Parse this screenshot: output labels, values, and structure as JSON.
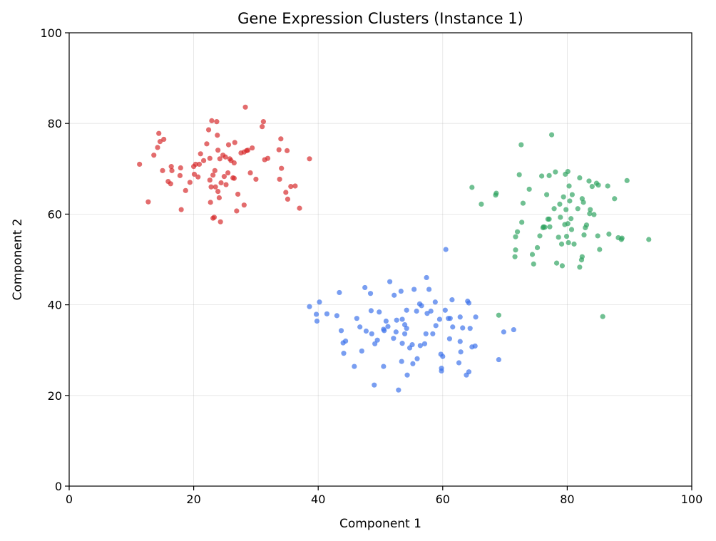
{
  "chart_data": {
    "type": "scatter",
    "title": "Gene Expression Clusters (Instance 1)",
    "xlabel": "Component 1",
    "ylabel": "Component 2",
    "xlim": [
      0,
      100
    ],
    "ylim": [
      0,
      100
    ],
    "xticks": [
      0,
      20,
      40,
      60,
      80,
      100
    ],
    "yticks": [
      0,
      20,
      40,
      60,
      80,
      100
    ],
    "grid": true,
    "series": [
      {
        "color": "#d62728",
        "points": [
          [
            11.3,
            71.0
          ],
          [
            12.7,
            62.7
          ],
          [
            13.6,
            73.0
          ],
          [
            14.2,
            74.7
          ],
          [
            14.4,
            77.8
          ],
          [
            14.6,
            76.0
          ],
          [
            15.0,
            69.6
          ],
          [
            15.2,
            76.5
          ],
          [
            15.9,
            67.2
          ],
          [
            16.3,
            66.7
          ],
          [
            16.4,
            70.5
          ],
          [
            16.5,
            69.6
          ],
          [
            17.8,
            68.5
          ],
          [
            17.9,
            70.2
          ],
          [
            18.0,
            61.0
          ],
          [
            18.7,
            65.2
          ],
          [
            19.4,
            67.0
          ],
          [
            20.0,
            70.5
          ],
          [
            20.1,
            68.8
          ],
          [
            20.3,
            71.0
          ],
          [
            20.7,
            68.2
          ],
          [
            20.9,
            71.0
          ],
          [
            21.1,
            73.3
          ],
          [
            21.6,
            71.8
          ],
          [
            22.1,
            75.5
          ],
          [
            22.4,
            78.6
          ],
          [
            22.6,
            67.5
          ],
          [
            22.6,
            72.3
          ],
          [
            22.7,
            62.6
          ],
          [
            22.8,
            66.0
          ],
          [
            22.9,
            80.6
          ],
          [
            23.1,
            68.6
          ],
          [
            23.1,
            59.1
          ],
          [
            23.3,
            59.3
          ],
          [
            23.4,
            69.6
          ],
          [
            23.5,
            66.0
          ],
          [
            23.7,
            80.4
          ],
          [
            23.8,
            77.4
          ],
          [
            23.9,
            74.1
          ],
          [
            23.9,
            65.0
          ],
          [
            24.1,
            63.6
          ],
          [
            24.2,
            72.2
          ],
          [
            24.3,
            58.3
          ],
          [
            24.4,
            66.9
          ],
          [
            24.7,
            73.0
          ],
          [
            24.9,
            68.3
          ],
          [
            25.1,
            72.6
          ],
          [
            25.2,
            66.5
          ],
          [
            25.5,
            69.1
          ],
          [
            25.6,
            75.3
          ],
          [
            25.8,
            72.2
          ],
          [
            26.0,
            71.8
          ],
          [
            26.3,
            68.0
          ],
          [
            26.5,
            67.9
          ],
          [
            26.5,
            71.3
          ],
          [
            26.6,
            75.8
          ],
          [
            26.9,
            60.7
          ],
          [
            27.1,
            64.4
          ],
          [
            27.6,
            73.5
          ],
          [
            28.1,
            62.0
          ],
          [
            28.1,
            73.7
          ],
          [
            28.3,
            83.6
          ],
          [
            28.5,
            74.0
          ],
          [
            28.7,
            74.1
          ],
          [
            29.1,
            69.1
          ],
          [
            29.4,
            74.6
          ],
          [
            30.0,
            67.7
          ],
          [
            31.0,
            79.3
          ],
          [
            31.2,
            80.4
          ],
          [
            31.4,
            72.0
          ],
          [
            31.9,
            72.3
          ],
          [
            33.7,
            74.2
          ],
          [
            33.8,
            67.7
          ],
          [
            34.0,
            76.6
          ],
          [
            34.1,
            70.1
          ],
          [
            34.8,
            64.8
          ],
          [
            35.0,
            74.0
          ],
          [
            35.1,
            63.3
          ],
          [
            35.6,
            66.1
          ],
          [
            36.3,
            66.2
          ],
          [
            37.0,
            61.3
          ],
          [
            38.6,
            72.2
          ]
        ]
      },
      {
        "color": "#3a70ea",
        "points": [
          [
            38.6,
            39.6
          ],
          [
            39.7,
            37.9
          ],
          [
            39.8,
            36.4
          ],
          [
            40.2,
            40.6
          ],
          [
            41.4,
            38.0
          ],
          [
            43.0,
            37.6
          ],
          [
            43.4,
            42.7
          ],
          [
            43.7,
            34.3
          ],
          [
            44.0,
            31.6
          ],
          [
            44.1,
            29.3
          ],
          [
            44.4,
            32.0
          ],
          [
            45.8,
            26.4
          ],
          [
            46.2,
            37.0
          ],
          [
            46.7,
            35.1
          ],
          [
            47.0,
            29.8
          ],
          [
            47.5,
            43.8
          ],
          [
            47.7,
            34.2
          ],
          [
            48.4,
            42.5
          ],
          [
            48.5,
            38.7
          ],
          [
            48.6,
            33.6
          ],
          [
            49.0,
            22.3
          ],
          [
            49.1,
            31.4
          ],
          [
            49.5,
            32.2
          ],
          [
            49.8,
            38.4
          ],
          [
            50.5,
            26.4
          ],
          [
            50.5,
            34.6
          ],
          [
            50.6,
            34.3
          ],
          [
            50.9,
            36.4
          ],
          [
            51.2,
            35.2
          ],
          [
            51.5,
            45.1
          ],
          [
            52.1,
            32.6
          ],
          [
            52.2,
            42.1
          ],
          [
            52.5,
            34.0
          ],
          [
            52.6,
            36.6
          ],
          [
            52.9,
            21.2
          ],
          [
            53.3,
            43.0
          ],
          [
            53.4,
            27.5
          ],
          [
            53.5,
            36.8
          ],
          [
            53.5,
            31.5
          ],
          [
            53.9,
            35.6
          ],
          [
            53.9,
            33.6
          ],
          [
            54.2,
            38.8
          ],
          [
            54.2,
            34.8
          ],
          [
            54.3,
            24.5
          ],
          [
            54.7,
            30.5
          ],
          [
            55.1,
            31.2
          ],
          [
            55.2,
            27.0
          ],
          [
            55.4,
            43.4
          ],
          [
            55.8,
            38.6
          ],
          [
            55.9,
            28.1
          ],
          [
            56.3,
            40.2
          ],
          [
            56.4,
            31.0
          ],
          [
            56.6,
            39.8
          ],
          [
            57.1,
            31.4
          ],
          [
            57.3,
            33.6
          ],
          [
            57.4,
            46.0
          ],
          [
            57.5,
            38.1
          ],
          [
            57.8,
            43.4
          ],
          [
            58.1,
            38.6
          ],
          [
            58.4,
            33.6
          ],
          [
            58.8,
            40.6
          ],
          [
            58.9,
            35.4
          ],
          [
            59.5,
            36.8
          ],
          [
            59.7,
            29.1
          ],
          [
            59.8,
            26.0
          ],
          [
            59.8,
            25.4
          ],
          [
            60.0,
            28.6
          ],
          [
            60.4,
            38.8
          ],
          [
            60.5,
            52.2
          ],
          [
            60.9,
            37.0
          ],
          [
            61.1,
            32.5
          ],
          [
            61.2,
            37.0
          ],
          [
            61.5,
            41.1
          ],
          [
            61.6,
            35.1
          ],
          [
            62.6,
            27.2
          ],
          [
            62.8,
            37.3
          ],
          [
            62.8,
            31.9
          ],
          [
            62.9,
            29.6
          ],
          [
            63.2,
            34.9
          ],
          [
            63.8,
            24.5
          ],
          [
            64.0,
            40.8
          ],
          [
            64.2,
            40.4
          ],
          [
            64.2,
            25.2
          ],
          [
            64.4,
            34.8
          ],
          [
            64.7,
            30.7
          ],
          [
            65.2,
            30.9
          ],
          [
            65.3,
            37.3
          ],
          [
            69.0,
            27.9
          ],
          [
            69.8,
            34.0
          ],
          [
            71.4,
            34.5
          ]
        ]
      },
      {
        "color": "#2ca25f",
        "points": [
          [
            64.7,
            65.9
          ],
          [
            66.2,
            62.2
          ],
          [
            68.5,
            64.2
          ],
          [
            68.6,
            64.6
          ],
          [
            69.0,
            37.7
          ],
          [
            71.6,
            50.6
          ],
          [
            71.7,
            52.1
          ],
          [
            71.7,
            55.0
          ],
          [
            72.0,
            56.1
          ],
          [
            72.3,
            68.7
          ],
          [
            72.6,
            75.3
          ],
          [
            72.7,
            58.2
          ],
          [
            72.9,
            62.4
          ],
          [
            73.9,
            65.5
          ],
          [
            74.4,
            51.1
          ],
          [
            74.6,
            49.0
          ],
          [
            75.2,
            52.6
          ],
          [
            75.6,
            55.2
          ],
          [
            75.9,
            68.4
          ],
          [
            76.1,
            57.0
          ],
          [
            76.2,
            57.2
          ],
          [
            76.4,
            57.1
          ],
          [
            76.7,
            64.3
          ],
          [
            76.9,
            58.9
          ],
          [
            77.1,
            68.5
          ],
          [
            77.1,
            58.9
          ],
          [
            77.2,
            57.2
          ],
          [
            77.5,
            77.5
          ],
          [
            77.9,
            61.2
          ],
          [
            78.1,
            69.3
          ],
          [
            78.3,
            49.2
          ],
          [
            78.6,
            54.9
          ],
          [
            78.8,
            62.2
          ],
          [
            78.9,
            59.3
          ],
          [
            79.1,
            53.4
          ],
          [
            79.2,
            48.6
          ],
          [
            79.4,
            63.8
          ],
          [
            79.6,
            57.7
          ],
          [
            79.7,
            68.8
          ],
          [
            79.8,
            61.0
          ],
          [
            79.9,
            55.1
          ],
          [
            80.1,
            69.4
          ],
          [
            80.1,
            57.9
          ],
          [
            80.2,
            53.7
          ],
          [
            80.3,
            66.2
          ],
          [
            80.4,
            62.9
          ],
          [
            80.6,
            59.0
          ],
          [
            80.7,
            56.6
          ],
          [
            80.8,
            64.3
          ],
          [
            81.1,
            53.4
          ],
          [
            81.7,
            61.2
          ],
          [
            82.0,
            48.3
          ],
          [
            82.0,
            68.0
          ],
          [
            82.3,
            49.9
          ],
          [
            82.4,
            50.6
          ],
          [
            82.4,
            63.4
          ],
          [
            82.6,
            62.6
          ],
          [
            82.7,
            55.4
          ],
          [
            82.9,
            57.0
          ],
          [
            83.1,
            57.6
          ],
          [
            83.5,
            67.3
          ],
          [
            83.6,
            60.1
          ],
          [
            83.7,
            61.0
          ],
          [
            84.0,
            66.1
          ],
          [
            84.3,
            59.9
          ],
          [
            84.7,
            66.8
          ],
          [
            84.9,
            55.2
          ],
          [
            85.0,
            66.4
          ],
          [
            85.2,
            52.2
          ],
          [
            85.7,
            37.4
          ],
          [
            86.5,
            66.2
          ],
          [
            86.7,
            55.6
          ],
          [
            87.6,
            63.4
          ],
          [
            88.2,
            54.8
          ],
          [
            88.7,
            54.4
          ],
          [
            88.8,
            54.7
          ],
          [
            89.6,
            67.4
          ],
          [
            93.1,
            54.4
          ]
        ]
      }
    ]
  }
}
